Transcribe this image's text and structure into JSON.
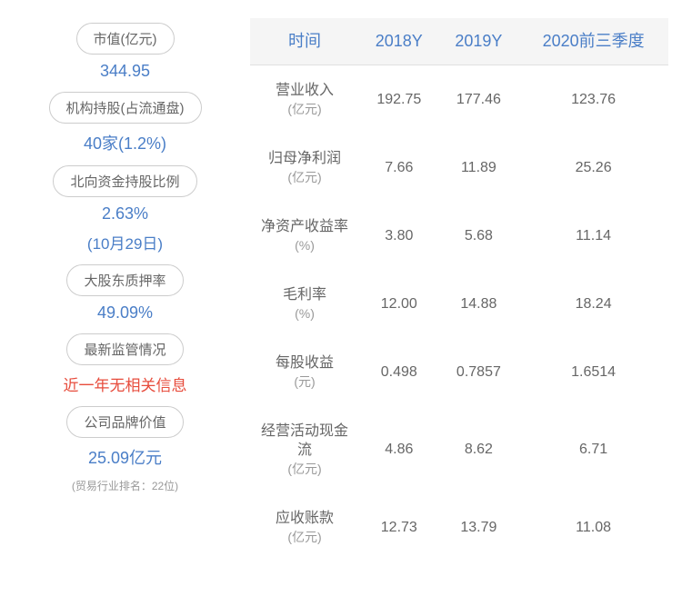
{
  "leftPanel": {
    "items": [
      {
        "label": "市值(亿元)",
        "value": "344.95",
        "valueColor": "#4a7ec7"
      },
      {
        "label": "机构持股(占流通盘)",
        "value": "40家(1.2%)",
        "valueColor": "#4a7ec7"
      },
      {
        "label": "北向资金持股比例",
        "value": "2.63%",
        "subValue": "(10月29日)",
        "valueColor": "#4a7ec7"
      },
      {
        "label": "大股东质押率",
        "value": "49.09%",
        "valueColor": "#4a7ec7"
      },
      {
        "label": "最新监管情况",
        "value": "近一年无相关信息",
        "valueColor": "#e74c3c"
      },
      {
        "label": "公司品牌价值",
        "value": "25.09亿元",
        "note": "(贸易行业排名：22位)",
        "valueColor": "#4a7ec7"
      }
    ]
  },
  "table": {
    "headers": [
      "时间",
      "2018Y",
      "2019Y",
      "2020前三季度"
    ],
    "rows": [
      {
        "metric": "营业收入",
        "unit": "(亿元)",
        "values": [
          "192.75",
          "177.46",
          "123.76"
        ]
      },
      {
        "metric": "归母净利润",
        "unit": "(亿元)",
        "values": [
          "7.66",
          "11.89",
          "25.26"
        ]
      },
      {
        "metric": "净资产收益率",
        "unit": "(%)",
        "values": [
          "3.80",
          "5.68",
          "11.14"
        ]
      },
      {
        "metric": "毛利率",
        "unit": "(%)",
        "values": [
          "12.00",
          "14.88",
          "18.24"
        ]
      },
      {
        "metric": "每股收益",
        "unit": "(元)",
        "values": [
          "0.498",
          "0.7857",
          "1.6514"
        ]
      },
      {
        "metric": "经营活动现金流",
        "unit": "(亿元)",
        "values": [
          "4.86",
          "8.62",
          "6.71"
        ]
      },
      {
        "metric": "应收账款",
        "unit": "(亿元)",
        "values": [
          "12.73",
          "13.79",
          "11.08"
        ]
      }
    ]
  },
  "colors": {
    "headerText": "#4a7ec7",
    "valueBlue": "#4a7ec7",
    "valueRed": "#e74c3c",
    "labelText": "#666666",
    "noteText": "#999999",
    "headerBg": "#f5f5f5",
    "border": "#e0e0e0"
  }
}
